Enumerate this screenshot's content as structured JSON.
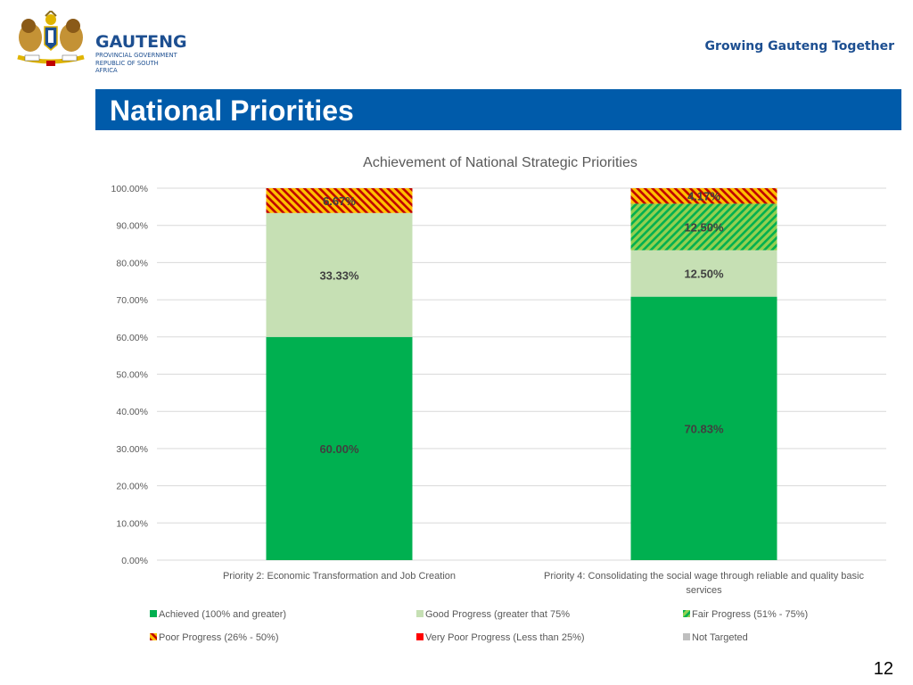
{
  "header": {
    "org_name": "GAUTENG",
    "org_sub1": "PROVINCIAL GOVERNMENT",
    "org_sub2": "REPUBLIC OF SOUTH AFRICA",
    "tagline": "Growing Gauteng Together"
  },
  "slide": {
    "title": "National Priorities",
    "page_number": "12"
  },
  "colors": {
    "title_band": "#005baa",
    "achieved": "#00b050",
    "good": "#c6e0b4",
    "fair_a": "#92d050",
    "fair_b": "#00b050",
    "poor_a": "#ffc000",
    "poor_b": "#c00000",
    "very_poor": "#ff0000",
    "not_targeted": "#bfbfbf"
  },
  "chart_data": {
    "type": "bar",
    "stacked": true,
    "title": "Achievement of National Strategic Priorities",
    "categories": [
      "Priority 2: Economic Transformation and Job Creation",
      "Priority 4: Consolidating the social wage through reliable and quality basic services"
    ],
    "category_label_lines": [
      [
        "Priority 2: Economic Transformation and Job Creation"
      ],
      [
        "Priority 4: Consolidating the social wage through reliable and quality basic",
        "services"
      ]
    ],
    "ylim": [
      0,
      100
    ],
    "yticks": [
      "0.00%",
      "10.00%",
      "20.00%",
      "30.00%",
      "40.00%",
      "50.00%",
      "60.00%",
      "70.00%",
      "80.00%",
      "90.00%",
      "100.00%"
    ],
    "series": [
      {
        "key": "achieved",
        "name": "Achieved (100%  and greater)",
        "values": [
          60.0,
          70.83
        ],
        "labels": [
          "60.00%",
          "70.83%"
        ]
      },
      {
        "key": "good",
        "name": "Good Progress (greater that 75%",
        "values": [
          33.33,
          12.5
        ],
        "labels": [
          "33.33%",
          "12.50%"
        ]
      },
      {
        "key": "fair",
        "name": "Fair Progress (51% - 75%)",
        "values": [
          0,
          12.5
        ],
        "labels": [
          "",
          "12.50%"
        ]
      },
      {
        "key": "poor",
        "name": "Poor Progress (26% - 50%)",
        "values": [
          6.67,
          4.17
        ],
        "labels": [
          "6.67%",
          "4.17%"
        ]
      },
      {
        "key": "very_poor",
        "name": "Very Poor Progress (Less than 25%)",
        "values": [
          0,
          0
        ],
        "labels": [
          "",
          ""
        ]
      },
      {
        "key": "not_targeted",
        "name": "Not Targeted",
        "values": [
          0,
          0
        ],
        "labels": [
          "",
          ""
        ]
      }
    ],
    "legend_position": "bottom"
  }
}
